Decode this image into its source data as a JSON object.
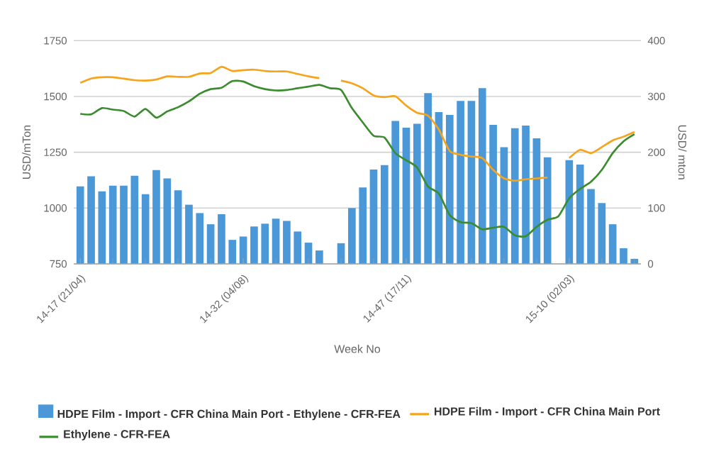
{
  "chart_data": {
    "type": "bar",
    "xlabel": "Week No",
    "ylabel": "USD/mTon",
    "y2label": "USD/ mton",
    "categories": [
      "14-17 (21/04)",
      null,
      null,
      null,
      null,
      null,
      null,
      null,
      null,
      null,
      null,
      null,
      null,
      null,
      null,
      "14-32 (04/08)",
      null,
      null,
      null,
      null,
      null,
      null,
      null,
      null,
      null,
      null,
      null,
      null,
      null,
      null,
      "14-47 (17/11)",
      null,
      null,
      null,
      null,
      null,
      null,
      null,
      null,
      null,
      null,
      null,
      null,
      null,
      null,
      "15-10 (02/03)",
      null,
      null,
      null,
      null,
      null,
      null
    ],
    "series": [
      {
        "name": "HDPE Film - Import - CFR China Main Port - Ethylene - CFR-FEA",
        "axis": "y2",
        "color": "#4a98d8",
        "values": [
          139,
          157,
          130,
          140,
          140,
          158,
          125,
          168,
          153,
          132,
          106,
          91,
          71,
          89,
          43,
          49,
          67,
          72,
          81,
          77,
          58,
          38,
          24,
          null,
          37,
          100,
          137,
          169,
          177,
          256,
          244,
          251,
          306,
          272,
          267,
          292,
          292,
          315,
          249,
          209,
          243,
          248,
          225,
          191,
          null,
          186,
          178,
          134,
          109,
          71,
          28,
          9
        ]
      },
      {
        "name": "HDPE Film - Import - CFR China Main Port",
        "type": "line",
        "color": "#f7a41d",
        "values": [
          1561,
          1580,
          1586,
          1586,
          1580,
          1573,
          1571,
          1576,
          1590,
          1588,
          1588,
          1603,
          1605,
          1633,
          1614,
          1618,
          1620,
          1614,
          1612,
          1612,
          1601,
          1590,
          1582,
          null,
          1571,
          1559,
          1537,
          1505,
          1497,
          1501,
          1459,
          1427,
          1414,
          1352,
          1256,
          1239,
          1231,
          1224,
          1171,
          1133,
          1122,
          1129,
          1133,
          1137,
          null,
          1224,
          1261,
          1246,
          1273,
          1303,
          1320,
          1341
        ]
      },
      {
        "name": "Ethylene - CFR-FEA",
        "type": "line",
        "color": "#3a8c2e",
        "values": [
          1422,
          1420,
          1448,
          1441,
          1435,
          1410,
          1444,
          1405,
          1433,
          1452,
          1478,
          1512,
          1533,
          1539,
          1569,
          1567,
          1546,
          1533,
          1527,
          1529,
          1537,
          1544,
          1552,
          1537,
          1529,
          1448,
          1384,
          1324,
          1316,
          1246,
          1214,
          1182,
          1097,
          1065,
          969,
          937,
          933,
          905,
          912,
          916,
          878,
          874,
          916,
          948,
          963,
          1044,
          1086,
          1118,
          1171,
          1246,
          1299,
          1331
        ]
      }
    ],
    "ylim": [
      750,
      1750
    ],
    "yticks": [
      750,
      1000,
      1250,
      1500,
      1750
    ],
    "y2lim": [
      0,
      400
    ],
    "y2ticks": [
      0,
      100,
      200,
      300,
      400
    ],
    "grid": "y",
    "legend": "bottom",
    "marker": "none"
  }
}
